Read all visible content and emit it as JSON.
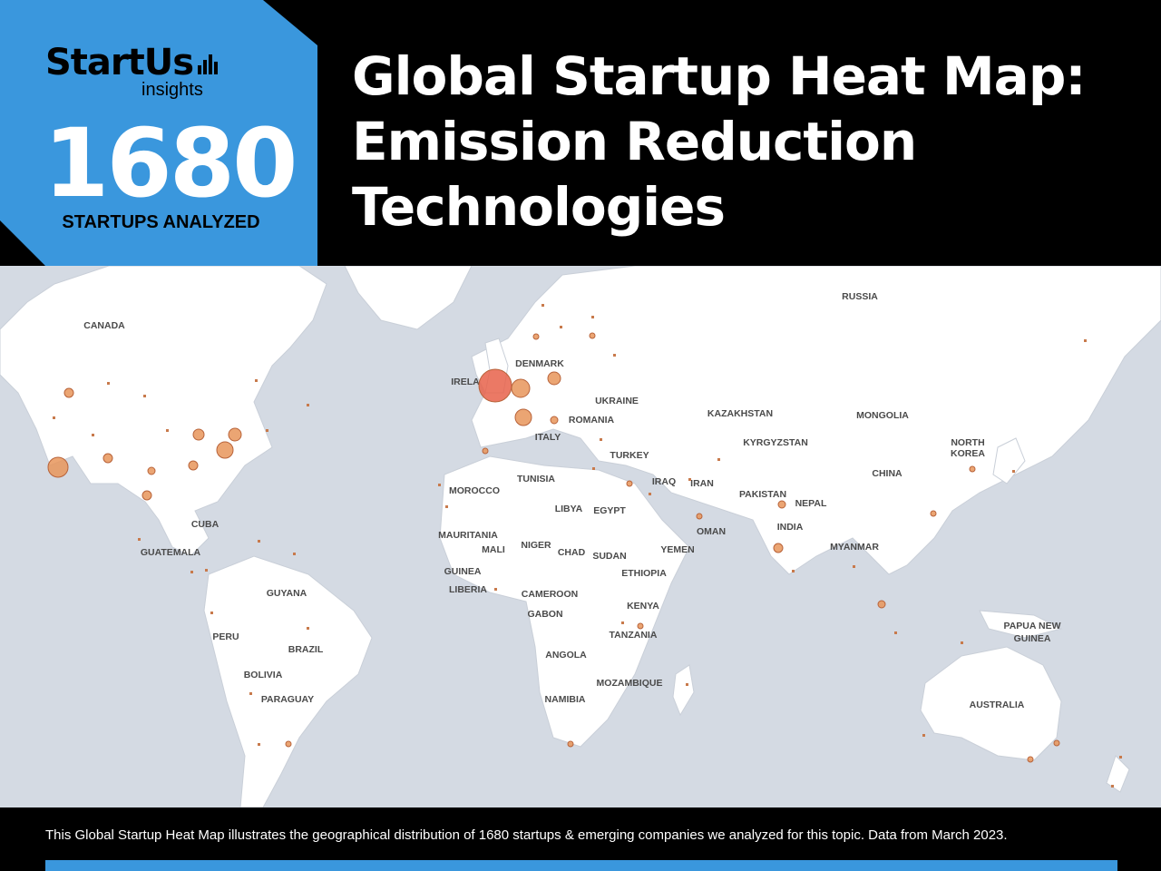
{
  "logo": {
    "name": "StartUs",
    "sub": "insights"
  },
  "stat": {
    "value": "1680",
    "caption": "STARTUPS ANALYZED"
  },
  "title_lines": [
    "Global Startup Heat Map:",
    "Emission Reduction",
    "Technologies"
  ],
  "map": {
    "labels": [
      "RUSSIA",
      "CANADA",
      "DENMARK",
      "IRELA",
      "UKRAINE",
      "ROMANIA",
      "KAZAKHSTAN",
      "MONGOLIA",
      "KYRGYZSTAN",
      "NORTH",
      "KOREA",
      "ITALY",
      "TURKEY",
      "CHINA",
      "TUNISIA",
      "IRAQ",
      "IRAN",
      "PAKISTAN",
      "MOROCCO",
      "LIBYA",
      "EGYPT",
      "NEPAL",
      "INDIA",
      "CUBA",
      "OMAN",
      "MAURITANIA",
      "NIGER",
      "MALI",
      "CHAD",
      "SUDAN",
      "YEMEN",
      "MYANMAR",
      "GUATEMALA",
      "GUINEA",
      "ETHIOPIA",
      "LIBERIA",
      "CAMEROON",
      "GUYANA",
      "KENYA",
      "GABON",
      "PERU",
      "BRAZIL",
      "TANZANIA",
      "PAPUA NEW",
      "GUINEA",
      "ANGOLA",
      "BOLIVIA",
      "MOZAMBIQUE",
      "PARAGUAY",
      "NAMIBIA",
      "AUSTRALIA"
    ],
    "accent": "#e8955a",
    "hotspot": "#e8624a"
  },
  "footer": {
    "text": "This Global Startup Heat Map illustrates the geographical distribution of 1680 startups & emerging companies we analyzed for this topic. Data from March 2023."
  },
  "colors": {
    "brand_blue": "#3a97dd",
    "ocean": "#d4dae3",
    "land": "#ffffff"
  }
}
